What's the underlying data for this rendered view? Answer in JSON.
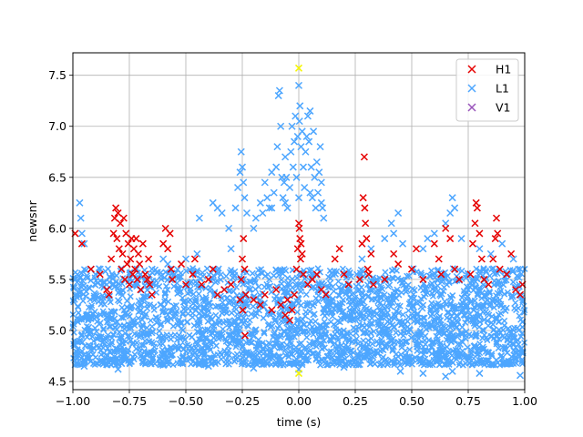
{
  "chart_data": {
    "type": "scatter",
    "title": "",
    "xlabel": "time (s)",
    "ylabel": "newsnr",
    "xlim": [
      -1.0,
      1.0
    ],
    "ylim": [
      4.42,
      7.72
    ],
    "grid": true,
    "legend_position": "top-right",
    "x_ticks": [
      {
        "value": -1.0,
        "label": "−1.00"
      },
      {
        "value": -0.75,
        "label": "−0.75"
      },
      {
        "value": -0.5,
        "label": "−0.50"
      },
      {
        "value": -0.25,
        "label": "−0.25"
      },
      {
        "value": 0.0,
        "label": "0.00"
      },
      {
        "value": 0.25,
        "label": "0.25"
      },
      {
        "value": 0.5,
        "label": "0.50"
      },
      {
        "value": 0.75,
        "label": "0.75"
      },
      {
        "value": 1.0,
        "label": "1.00"
      }
    ],
    "y_ticks": [
      {
        "value": 4.5,
        "label": "4.5"
      },
      {
        "value": 5.0,
        "label": "5.0"
      },
      {
        "value": 5.5,
        "label": "5.5"
      },
      {
        "value": 6.0,
        "label": "6.0"
      },
      {
        "value": 6.5,
        "label": "6.5"
      },
      {
        "value": 7.0,
        "label": "7.0"
      },
      {
        "value": 7.5,
        "label": "7.5"
      }
    ],
    "series": [
      {
        "name": "H1",
        "color": "#e60000",
        "marker": "x",
        "points": [
          [
            -0.99,
            5.95
          ],
          [
            -0.96,
            5.85
          ],
          [
            -0.92,
            5.6
          ],
          [
            -0.88,
            5.55
          ],
          [
            -0.85,
            5.4
          ],
          [
            -0.84,
            5.35
          ],
          [
            -0.83,
            5.7
          ],
          [
            -0.82,
            5.95
          ],
          [
            -0.815,
            6.1
          ],
          [
            -0.81,
            6.2
          ],
          [
            -0.805,
            5.9
          ],
          [
            -0.8,
            6.15
          ],
          [
            -0.795,
            5.8
          ],
          [
            -0.79,
            6.05
          ],
          [
            -0.785,
            5.6
          ],
          [
            -0.78,
            5.75
          ],
          [
            -0.775,
            6.1
          ],
          [
            -0.77,
            5.5
          ],
          [
            -0.765,
            5.95
          ],
          [
            -0.76,
            5.65
          ],
          [
            -0.755,
            5.85
          ],
          [
            -0.75,
            5.45
          ],
          [
            -0.745,
            5.7
          ],
          [
            -0.74,
            5.9
          ],
          [
            -0.735,
            5.55
          ],
          [
            -0.73,
            5.8
          ],
          [
            -0.725,
            5.6
          ],
          [
            -0.72,
            5.9
          ],
          [
            -0.715,
            5.5
          ],
          [
            -0.71,
            5.75
          ],
          [
            -0.705,
            5.65
          ],
          [
            -0.7,
            5.4
          ],
          [
            -0.69,
            5.85
          ],
          [
            -0.68,
            5.55
          ],
          [
            -0.67,
            5.5
          ],
          [
            -0.665,
            5.7
          ],
          [
            -0.66,
            5.45
          ],
          [
            -0.65,
            5.35
          ],
          [
            -0.6,
            5.85
          ],
          [
            -0.59,
            6.0
          ],
          [
            -0.58,
            5.8
          ],
          [
            -0.57,
            5.95
          ],
          [
            -0.565,
            5.6
          ],
          [
            -0.56,
            5.5
          ],
          [
            -0.52,
            5.65
          ],
          [
            -0.5,
            5.45
          ],
          [
            -0.47,
            5.55
          ],
          [
            -0.46,
            5.7
          ],
          [
            -0.43,
            5.45
          ],
          [
            -0.4,
            5.5
          ],
          [
            -0.38,
            5.6
          ],
          [
            -0.36,
            5.35
          ],
          [
            -0.33,
            5.4
          ],
          [
            -0.3,
            5.45
          ],
          [
            -0.26,
            5.3
          ],
          [
            -0.255,
            5.5
          ],
          [
            -0.25,
            5.7
          ],
          [
            -0.248,
            5.2
          ],
          [
            -0.245,
            5.9
          ],
          [
            -0.24,
            5.6
          ],
          [
            -0.238,
            4.95
          ],
          [
            -0.235,
            5.35
          ],
          [
            -0.2,
            5.3
          ],
          [
            -0.17,
            5.25
          ],
          [
            -0.15,
            5.35
          ],
          [
            -0.12,
            5.2
          ],
          [
            -0.1,
            5.4
          ],
          [
            -0.08,
            5.25
          ],
          [
            -0.06,
            5.15
          ],
          [
            -0.05,
            5.3
          ],
          [
            -0.04,
            5.1
          ],
          [
            -0.03,
            5.2
          ],
          [
            -0.02,
            5.35
          ],
          [
            -0.01,
            5.6
          ],
          [
            -0.005,
            5.8
          ],
          [
            0.0,
            6.05
          ],
          [
            0.002,
            6.0
          ],
          [
            0.005,
            5.9
          ],
          [
            0.008,
            5.7
          ],
          [
            0.01,
            5.85
          ],
          [
            0.015,
            5.75
          ],
          [
            0.02,
            5.55
          ],
          [
            0.04,
            5.45
          ],
          [
            0.06,
            5.5
          ],
          [
            0.08,
            5.55
          ],
          [
            0.1,
            5.4
          ],
          [
            0.12,
            5.35
          ],
          [
            0.16,
            5.7
          ],
          [
            0.18,
            5.8
          ],
          [
            0.2,
            5.55
          ],
          [
            0.22,
            5.45
          ],
          [
            0.27,
            5.5
          ],
          [
            0.28,
            5.85
          ],
          [
            0.285,
            6.3
          ],
          [
            0.29,
            6.7
          ],
          [
            0.292,
            6.2
          ],
          [
            0.295,
            6.05
          ],
          [
            0.3,
            5.9
          ],
          [
            0.305,
            5.6
          ],
          [
            0.31,
            5.55
          ],
          [
            0.32,
            5.75
          ],
          [
            0.33,
            5.45
          ],
          [
            0.38,
            5.5
          ],
          [
            0.42,
            5.75
          ],
          [
            0.44,
            5.65
          ],
          [
            0.5,
            5.6
          ],
          [
            0.52,
            5.8
          ],
          [
            0.55,
            5.5
          ],
          [
            0.6,
            5.85
          ],
          [
            0.62,
            5.7
          ],
          [
            0.63,
            5.55
          ],
          [
            0.65,
            6.0
          ],
          [
            0.67,
            5.9
          ],
          [
            0.69,
            5.6
          ],
          [
            0.71,
            5.5
          ],
          [
            0.76,
            5.55
          ],
          [
            0.77,
            5.85
          ],
          [
            0.78,
            6.05
          ],
          [
            0.785,
            6.25
          ],
          [
            0.79,
            6.2
          ],
          [
            0.8,
            5.95
          ],
          [
            0.81,
            5.7
          ],
          [
            0.82,
            5.5
          ],
          [
            0.84,
            5.45
          ],
          [
            0.86,
            5.7
          ],
          [
            0.87,
            5.9
          ],
          [
            0.875,
            6.1
          ],
          [
            0.88,
            5.95
          ],
          [
            0.89,
            5.6
          ],
          [
            0.92,
            5.55
          ],
          [
            0.94,
            5.75
          ],
          [
            0.96,
            5.4
          ],
          [
            0.98,
            5.35
          ],
          [
            0.99,
            5.45
          ]
        ]
      },
      {
        "name": "L1",
        "color": "#4da6ff",
        "marker": "x",
        "points": [
          [
            -0.97,
            6.25
          ],
          [
            -0.965,
            6.1
          ],
          [
            -0.96,
            5.95
          ],
          [
            -0.95,
            5.85
          ],
          [
            -0.92,
            5.6
          ],
          [
            -0.9,
            5.55
          ],
          [
            -0.88,
            5.6
          ],
          [
            -0.82,
            5.45
          ],
          [
            -0.75,
            5.5
          ],
          [
            -0.7,
            5.55
          ],
          [
            -0.65,
            5.6
          ],
          [
            -0.6,
            5.7
          ],
          [
            -0.58,
            5.65
          ],
          [
            -0.55,
            5.55
          ],
          [
            -0.5,
            5.7
          ],
          [
            -0.45,
            5.75
          ],
          [
            -0.44,
            6.1
          ],
          [
            -0.38,
            6.25
          ],
          [
            -0.36,
            6.2
          ],
          [
            -0.34,
            6.15
          ],
          [
            -0.31,
            6.0
          ],
          [
            -0.3,
            5.8
          ],
          [
            -0.28,
            6.2
          ],
          [
            -0.27,
            6.4
          ],
          [
            -0.26,
            6.55
          ],
          [
            -0.255,
            6.75
          ],
          [
            -0.25,
            6.6
          ],
          [
            -0.245,
            6.45
          ],
          [
            -0.24,
            6.3
          ],
          [
            -0.23,
            6.15
          ],
          [
            -0.2,
            6.0
          ],
          [
            -0.19,
            6.1
          ],
          [
            -0.17,
            6.25
          ],
          [
            -0.16,
            6.15
          ],
          [
            -0.15,
            6.45
          ],
          [
            -0.14,
            6.3
          ],
          [
            -0.13,
            6.2
          ],
          [
            -0.12,
            6.55
          ],
          [
            -0.11,
            6.35
          ],
          [
            -0.1,
            6.6
          ],
          [
            -0.095,
            6.8
          ],
          [
            -0.09,
            7.3
          ],
          [
            -0.085,
            7.35
          ],
          [
            -0.08,
            7.0
          ],
          [
            -0.075,
            6.5
          ],
          [
            -0.07,
            6.3
          ],
          [
            -0.065,
            6.45
          ],
          [
            -0.06,
            6.7
          ],
          [
            -0.055,
            6.5
          ],
          [
            -0.05,
            6.2
          ],
          [
            -0.04,
            6.4
          ],
          [
            -0.035,
            6.75
          ],
          [
            -0.03,
            7.0
          ],
          [
            -0.025,
            6.6
          ],
          [
            -0.02,
            6.85
          ],
          [
            -0.015,
            7.1
          ],
          [
            -0.01,
            6.5
          ],
          [
            -0.005,
            6.9
          ],
          [
            0.0,
            7.4
          ],
          [
            0.003,
            7.05
          ],
          [
            0.005,
            7.2
          ],
          [
            0.01,
            6.8
          ],
          [
            0.015,
            6.95
          ],
          [
            0.02,
            6.6
          ],
          [
            0.025,
            6.4
          ],
          [
            0.03,
            6.75
          ],
          [
            0.035,
            6.9
          ],
          [
            0.04,
            7.1
          ],
          [
            0.045,
            6.85
          ],
          [
            0.05,
            7.15
          ],
          [
            0.055,
            6.6
          ],
          [
            0.06,
            6.3
          ],
          [
            0.065,
            6.95
          ],
          [
            0.07,
            6.5
          ],
          [
            0.075,
            6.2
          ],
          [
            0.08,
            6.65
          ],
          [
            0.085,
            6.35
          ],
          [
            0.09,
            6.55
          ],
          [
            0.095,
            6.8
          ],
          [
            0.1,
            6.45
          ],
          [
            0.105,
            6.2
          ],
          [
            0.11,
            6.1
          ],
          [
            -0.12,
            6.2
          ],
          [
            -0.06,
            6.25
          ],
          [
            0.0,
            6.3
          ],
          [
            0.05,
            6.35
          ],
          [
            0.1,
            6.25
          ],
          [
            0.28,
            5.7
          ],
          [
            0.32,
            5.8
          ],
          [
            0.38,
            5.9
          ],
          [
            0.41,
            6.05
          ],
          [
            0.42,
            5.95
          ],
          [
            0.44,
            6.15
          ],
          [
            0.46,
            5.85
          ],
          [
            0.55,
            5.8
          ],
          [
            0.57,
            5.9
          ],
          [
            0.6,
            5.95
          ],
          [
            0.65,
            6.05
          ],
          [
            0.67,
            6.15
          ],
          [
            0.68,
            6.3
          ],
          [
            0.69,
            6.2
          ],
          [
            0.72,
            5.9
          ],
          [
            0.8,
            5.8
          ],
          [
            0.85,
            5.75
          ],
          [
            0.9,
            5.85
          ],
          [
            0.95,
            5.7
          ],
          [
            0.98,
            5.6
          ],
          [
            -0.95,
            4.65
          ],
          [
            -0.8,
            4.62
          ],
          [
            -0.6,
            4.66
          ],
          [
            -0.4,
            4.65
          ],
          [
            -0.2,
            4.63
          ],
          [
            0.0,
            4.62
          ],
          [
            0.2,
            4.64
          ],
          [
            0.45,
            4.6
          ],
          [
            0.55,
            4.58
          ],
          [
            0.65,
            4.55
          ],
          [
            0.68,
            4.6
          ],
          [
            0.8,
            4.58
          ],
          [
            0.98,
            4.56
          ]
        ]
      },
      {
        "name": "V1",
        "color": "#9955bb",
        "marker": "x",
        "points": []
      }
    ],
    "highlights": {
      "name": "",
      "color": "#f5f500",
      "marker": "x",
      "points": [
        [
          0.0,
          7.57
        ],
        [
          0.0,
          4.58
        ]
      ]
    }
  }
}
